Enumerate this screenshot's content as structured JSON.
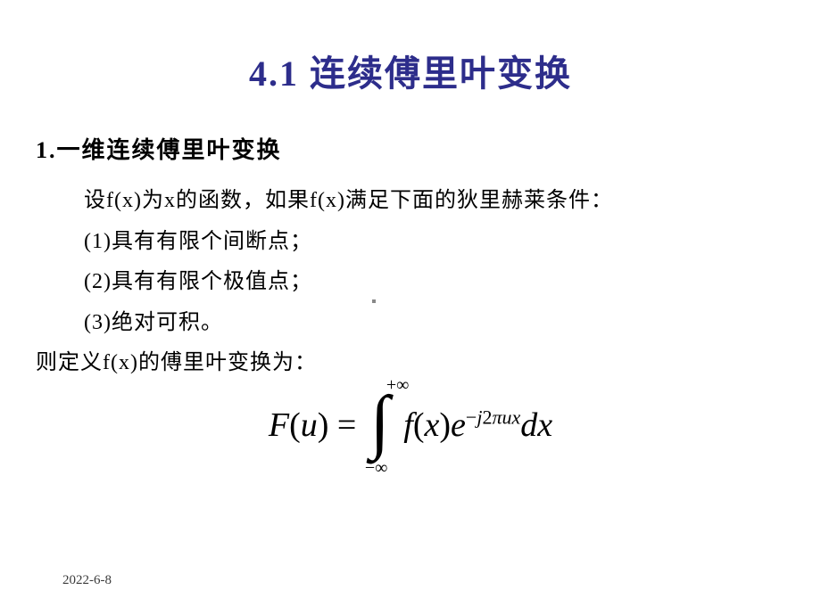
{
  "title": "4.1 连续傅里叶变换",
  "section": "1.一维连续傅里叶变换",
  "intro": "设f(x)为x的函数，如果f(x)满足下面的狄里赫莱条件：",
  "cond1": "(1)具有有限个间断点；",
  "cond2": "(2)具有有限个极值点；",
  "cond3": "(3)绝对可积。",
  "definition": "则定义f(x)的傅里叶变换为：",
  "formula": {
    "lhs_F": "F",
    "lhs_open": "(",
    "lhs_u": "u",
    "lhs_close": ")",
    "eq": " = ",
    "upper": "+∞",
    "lower": "−∞",
    "f": "f",
    "open2": "(",
    "x": "x",
    "close2": ")",
    "e": "e",
    "exp_minus": "−",
    "exp_j": "j",
    "exp_2": "2",
    "exp_pi": "π",
    "exp_ux": "ux",
    "dx_d": "d",
    "dx_x": "x"
  },
  "footer_date": "2022-6-8",
  "colors": {
    "title_color": "#2d2d8b",
    "text_color": "#000000",
    "background": "#ffffff"
  }
}
